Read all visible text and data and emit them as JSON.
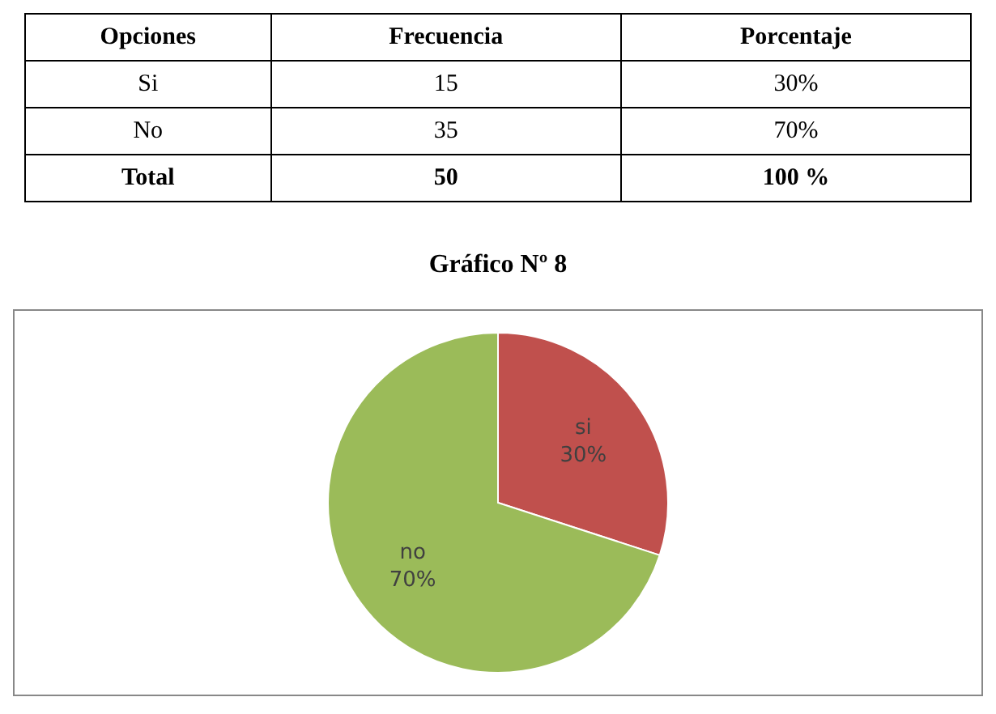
{
  "chart_data": {
    "type": "pie",
    "title": "Gráfico Nº 8",
    "categories": [
      "si",
      "no"
    ],
    "values": [
      30,
      70
    ],
    "colors": [
      "#c0504d",
      "#9bbb59"
    ],
    "value_labels": [
      "30%",
      "70%"
    ],
    "annotations": [
      "Opciones",
      "Frecuencia",
      "Porcentaje",
      "Si",
      "15",
      "30%",
      "No",
      "35",
      "70%",
      "Total",
      "50",
      "100 %"
    ]
  }
}
